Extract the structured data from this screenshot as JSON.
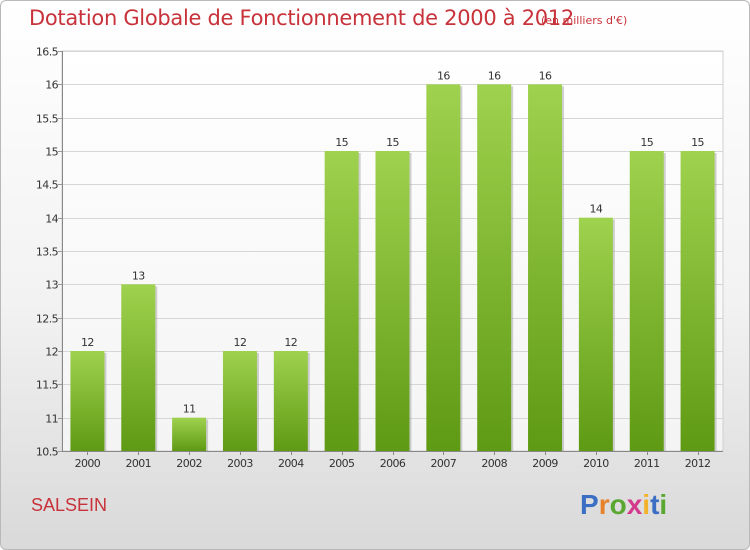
{
  "header": {
    "title": "Dotation Globale de Fonctionnement de 2000 à 2012",
    "subtitle": "(en milliers d'€)"
  },
  "footer": {
    "commune": "SALSEIN",
    "logo_text": "Proxiti"
  },
  "colors": {
    "title": "#c8323a",
    "bar_top": "#9fd24e",
    "bar_bottom": "#5f9a14",
    "grid": "#d6d6d6",
    "logo": [
      "#3b6fc4",
      "#e8822a",
      "#5aa832",
      "#d43a8c",
      "#f2b22a",
      "#3b6fc4",
      "#5aa832"
    ]
  },
  "chart_data": {
    "type": "bar",
    "title": "Dotation Globale de Fonctionnement de 2000 à 2012",
    "subtitle": "(en milliers d'€)",
    "categories": [
      "2000",
      "2001",
      "2002",
      "2003",
      "2004",
      "2005",
      "2006",
      "2007",
      "2008",
      "2009",
      "2010",
      "2011",
      "2012"
    ],
    "values": [
      12,
      13,
      11,
      12,
      12,
      15,
      15,
      16,
      16,
      16,
      14,
      15,
      15
    ],
    "value_labels": [
      "12",
      "13",
      "11",
      "12",
      "12",
      "15",
      "15",
      "16",
      "16",
      "16",
      "14",
      "15",
      "15"
    ],
    "ylim": [
      10.5,
      16.5
    ],
    "yticks": [
      10.5,
      11,
      11.5,
      12,
      12.5,
      13,
      13.5,
      14,
      14.5,
      15,
      15.5,
      16,
      16.5
    ],
    "ytick_labels": [
      "10.5",
      "11",
      "11.5",
      "12",
      "12.5",
      "13",
      "13.5",
      "14",
      "14.5",
      "15",
      "15.5",
      "16",
      "16.5"
    ],
    "grid": true,
    "xlabel": "",
    "ylabel": ""
  }
}
